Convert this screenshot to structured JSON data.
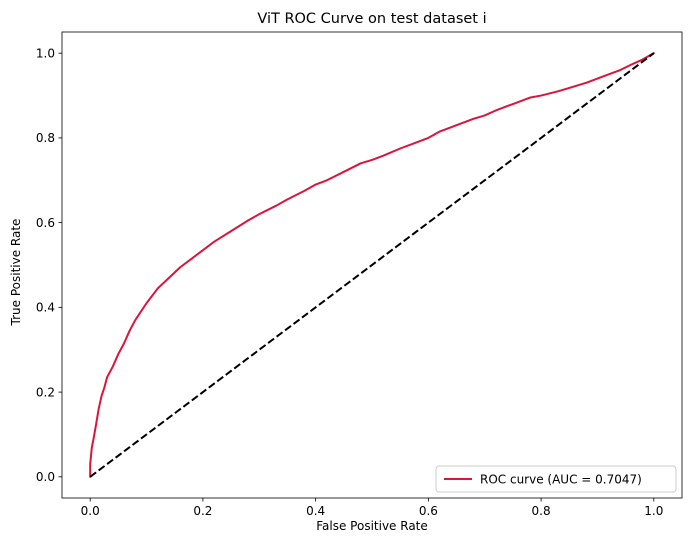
{
  "chart_data": {
    "type": "line",
    "title": "ViT ROC Curve on test dataset i",
    "xlabel": "False Positive Rate",
    "ylabel": "True Positive Rate",
    "xlim": [
      -0.05,
      1.05
    ],
    "ylim": [
      -0.05,
      1.05
    ],
    "xticks": [
      0.0,
      0.2,
      0.4,
      0.6,
      0.8,
      1.0
    ],
    "yticks": [
      0.0,
      0.2,
      0.4,
      0.6,
      0.8,
      1.0
    ],
    "xtick_labels": [
      "0.0",
      "0.2",
      "0.4",
      "0.6",
      "0.8",
      "1.0"
    ],
    "ytick_labels": [
      "0.0",
      "0.2",
      "0.4",
      "0.6",
      "0.8",
      "1.0"
    ],
    "grid": false,
    "legend_position": "lower-right",
    "series": [
      {
        "name": "ROC curve (AUC = 0.7047)",
        "color": "#dc143c",
        "style": "solid",
        "x": [
          0.0,
          0.0,
          0.003,
          0.006,
          0.01,
          0.015,
          0.02,
          0.025,
          0.03,
          0.04,
          0.05,
          0.06,
          0.07,
          0.08,
          0.09,
          0.1,
          0.12,
          0.14,
          0.16,
          0.18,
          0.2,
          0.22,
          0.25,
          0.28,
          0.3,
          0.33,
          0.35,
          0.38,
          0.4,
          0.42,
          0.45,
          0.48,
          0.5,
          0.52,
          0.55,
          0.58,
          0.6,
          0.62,
          0.65,
          0.68,
          0.7,
          0.72,
          0.75,
          0.78,
          0.8,
          0.83,
          0.85,
          0.88,
          0.9,
          0.92,
          0.94,
          0.96,
          0.98,
          1.0
        ],
        "y": [
          0.0,
          0.03,
          0.07,
          0.09,
          0.12,
          0.16,
          0.19,
          0.21,
          0.235,
          0.26,
          0.29,
          0.315,
          0.345,
          0.37,
          0.39,
          0.41,
          0.445,
          0.47,
          0.495,
          0.515,
          0.535,
          0.555,
          0.58,
          0.605,
          0.62,
          0.64,
          0.655,
          0.675,
          0.69,
          0.7,
          0.72,
          0.74,
          0.748,
          0.758,
          0.775,
          0.79,
          0.8,
          0.815,
          0.83,
          0.845,
          0.853,
          0.865,
          0.88,
          0.895,
          0.9,
          0.91,
          0.918,
          0.93,
          0.94,
          0.95,
          0.96,
          0.973,
          0.985,
          1.0
        ]
      },
      {
        "name": "",
        "color": "#000000",
        "style": "dashed",
        "x": [
          0.0,
          1.0
        ],
        "y": [
          0.0,
          1.0
        ]
      }
    ]
  }
}
